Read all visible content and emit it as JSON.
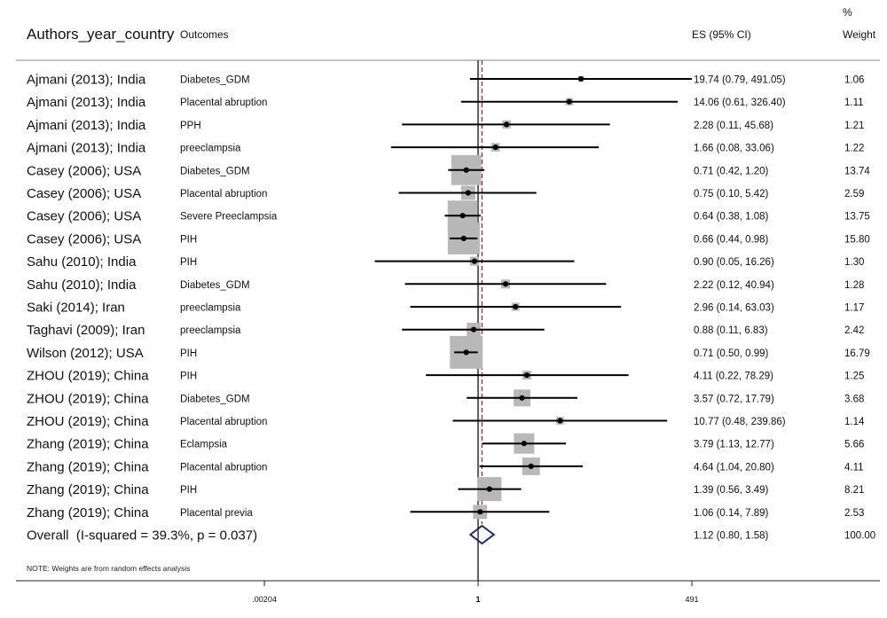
{
  "headers": {
    "study": "Authors_year_country",
    "outcome": "Outcomes",
    "es": "ES (95% CI)",
    "weight_top": "%",
    "weight_bottom": "Weight"
  },
  "note": "NOTE: Weights are from random effects analysis",
  "chart_data": {
    "type": "forest",
    "scale": "log",
    "x_ticks": [
      ".00204",
      "1",
      "491"
    ],
    "x_tick_values": [
      0.00204,
      1,
      491
    ],
    "null_line": 1,
    "rows": [
      {
        "study": "Ajmani (2013); India",
        "outcome": "Diabetes_GDM",
        "es": 19.74,
        "lo": 0.79,
        "hi": 491.05,
        "ci_text": "19.74 (0.79, 491.05)",
        "weight": "1.06"
      },
      {
        "study": "Ajmani (2013); India",
        "outcome": "Placental abruption",
        "es": 14.06,
        "lo": 0.61,
        "hi": 326.4,
        "ci_text": "14.06 (0.61, 326.40)",
        "weight": "1.11"
      },
      {
        "study": "Ajmani (2013); India",
        "outcome": "PPH",
        "es": 2.28,
        "lo": 0.11,
        "hi": 45.68,
        "ci_text": "2.28 (0.11, 45.68)",
        "weight": "1.21"
      },
      {
        "study": "Ajmani (2013); India",
        "outcome": "preeclampsia",
        "es": 1.66,
        "lo": 0.08,
        "hi": 33.06,
        "ci_text": "1.66 (0.08, 33.06)",
        "weight": "1.22"
      },
      {
        "study": "Casey (2006); USA",
        "outcome": "Diabetes_GDM",
        "es": 0.71,
        "lo": 0.42,
        "hi": 1.2,
        "ci_text": "0.71 (0.42, 1.20)",
        "weight": "13.74"
      },
      {
        "study": "Casey (2006); USA",
        "outcome": "Placental abruption",
        "es": 0.75,
        "lo": 0.1,
        "hi": 5.42,
        "ci_text": "0.75 (0.10, 5.42)",
        "weight": "2.59"
      },
      {
        "study": "Casey (2006); USA",
        "outcome": "Severe Preeclampsia",
        "es": 0.64,
        "lo": 0.38,
        "hi": 1.08,
        "ci_text": "0.64 (0.38, 1.08)",
        "weight": "13.75"
      },
      {
        "study": "Casey (2006); USA",
        "outcome": "PIH",
        "es": 0.66,
        "lo": 0.44,
        "hi": 0.98,
        "ci_text": "0.66 (0.44, 0.98)",
        "weight": "15.80"
      },
      {
        "study": "Sahu (2010); India",
        "outcome": "PIH",
        "es": 0.9,
        "lo": 0.05,
        "hi": 16.26,
        "ci_text": "0.90 (0.05, 16.26)",
        "weight": "1.30"
      },
      {
        "study": "Sahu (2010); India",
        "outcome": "Diabetes_GDM",
        "es": 2.22,
        "lo": 0.12,
        "hi": 40.94,
        "ci_text": "2.22 (0.12, 40.94)",
        "weight": "1.28"
      },
      {
        "study": "Saki (2014); Iran",
        "outcome": "preeclampsia",
        "es": 2.96,
        "lo": 0.14,
        "hi": 63.03,
        "ci_text": "2.96 (0.14, 63.03)",
        "weight": "1.17"
      },
      {
        "study": "Taghavi (2009); Iran",
        "outcome": "preeclampsia",
        "es": 0.88,
        "lo": 0.11,
        "hi": 6.83,
        "ci_text": "0.88 (0.11, 6.83)",
        "weight": "2.42"
      },
      {
        "study": "Wilson (2012); USA",
        "outcome": "PIH",
        "es": 0.71,
        "lo": 0.5,
        "hi": 0.99,
        "ci_text": "0.71 (0.50, 0.99)",
        "weight": "16.79"
      },
      {
        "study": "ZHOU (2019); China",
        "outcome": "PIH",
        "es": 4.11,
        "lo": 0.22,
        "hi": 78.29,
        "ci_text": "4.11 (0.22, 78.29)",
        "weight": "1.25"
      },
      {
        "study": "ZHOU (2019); China",
        "outcome": "Diabetes_GDM",
        "es": 3.57,
        "lo": 0.72,
        "hi": 17.79,
        "ci_text": "3.57 (0.72, 17.79)",
        "weight": "3.68"
      },
      {
        "study": "ZHOU (2019); China",
        "outcome": "Placental abruption",
        "es": 10.77,
        "lo": 0.48,
        "hi": 239.86,
        "ci_text": "10.77 (0.48, 239.86)",
        "weight": "1.14"
      },
      {
        "study": "Zhang (2019); China",
        "outcome": "Eclampsia",
        "es": 3.79,
        "lo": 1.13,
        "hi": 12.77,
        "ci_text": "3.79 (1.13, 12.77)",
        "weight": "5.66"
      },
      {
        "study": "Zhang (2019); China",
        "outcome": "Placental abruption",
        "es": 4.64,
        "lo": 1.04,
        "hi": 20.8,
        "ci_text": "4.64 (1.04, 20.80)",
        "weight": "4.11"
      },
      {
        "study": "Zhang (2019); China",
        "outcome": "PIH",
        "es": 1.39,
        "lo": 0.56,
        "hi": 3.49,
        "ci_text": "1.39 (0.56, 3.49)",
        "weight": "8.21"
      },
      {
        "study": "Zhang (2019); China",
        "outcome": "Placental previa",
        "es": 1.06,
        "lo": 0.14,
        "hi": 7.89,
        "ci_text": "1.06 (0.14, 7.89)",
        "weight": "2.53"
      }
    ],
    "overall": {
      "label": "Overall  (I-squared = 39.3%, p = 0.037)",
      "es": 1.12,
      "lo": 0.8,
      "hi": 1.58,
      "ci_text": "1.12 (0.80, 1.58)",
      "weight": "100.00"
    },
    "colors": {
      "box": "#b8b8b8",
      "diamond": "#1f2a6b",
      "overall_line": "#8b2040",
      "null_line": "#111111"
    }
  }
}
